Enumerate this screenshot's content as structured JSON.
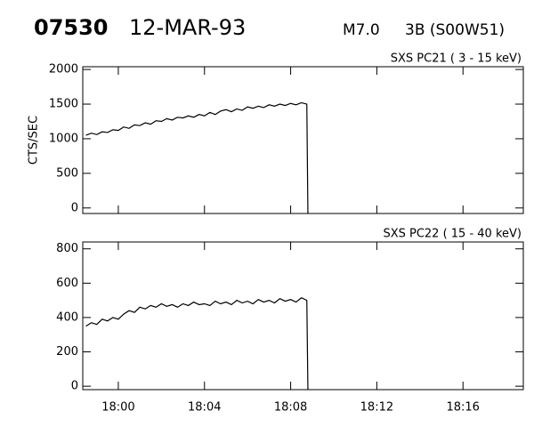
{
  "header": {
    "event": "07530",
    "date": "12-MAR-93",
    "class": "M7.0",
    "flare": "3B (S00W51)"
  },
  "chart_data": [
    {
      "type": "line",
      "title": "SXS PC21  (  3 - 15 keV)",
      "ylabel": "CTS/SEC",
      "x": [
        1078.5,
        1078.75,
        1079,
        1079.25,
        1079.5,
        1079.75,
        1080,
        1080.25,
        1080.5,
        1080.75,
        1081,
        1081.25,
        1081.5,
        1081.75,
        1082,
        1082.25,
        1082.5,
        1082.75,
        1083,
        1083.25,
        1083.5,
        1083.75,
        1084,
        1084.25,
        1084.5,
        1084.75,
        1085,
        1085.25,
        1085.5,
        1085.75,
        1086,
        1086.25,
        1086.5,
        1086.75,
        1087,
        1087.25,
        1087.5,
        1087.75,
        1088,
        1088.25,
        1088.5,
        1088.75,
        1088.8
      ],
      "series": [
        {
          "color": "#000000",
          "values": [
            1050,
            1080,
            1060,
            1100,
            1090,
            1130,
            1120,
            1170,
            1150,
            1200,
            1190,
            1230,
            1210,
            1260,
            1250,
            1290,
            1270,
            1310,
            1300,
            1330,
            1310,
            1350,
            1330,
            1380,
            1350,
            1400,
            1420,
            1390,
            1430,
            1410,
            1460,
            1440,
            1470,
            1450,
            1490,
            1470,
            1500,
            1480,
            1510,
            1490,
            1520,
            1500,
            -75
          ]
        }
      ],
      "xlim": [
        1078.35,
        1098.8
      ],
      "ylim": [
        -80,
        2040
      ],
      "xticks": [
        1080,
        1084,
        1088,
        1092,
        1096
      ],
      "yticks": [
        0,
        500,
        1000,
        1500,
        2000
      ]
    },
    {
      "type": "line",
      "title": "SXS PC22  ( 15 - 40 keV)",
      "x": [
        1078.5,
        1078.75,
        1079,
        1079.25,
        1079.5,
        1079.75,
        1080,
        1080.25,
        1080.5,
        1080.75,
        1081,
        1081.25,
        1081.5,
        1081.75,
        1082,
        1082.25,
        1082.5,
        1082.75,
        1083,
        1083.25,
        1083.5,
        1083.75,
        1084,
        1084.25,
        1084.5,
        1084.75,
        1085,
        1085.25,
        1085.5,
        1085.75,
        1086,
        1086.25,
        1086.5,
        1086.75,
        1087,
        1087.25,
        1087.5,
        1087.75,
        1088,
        1088.25,
        1088.5,
        1088.75,
        1088.8
      ],
      "series": [
        {
          "color": "#000000",
          "values": [
            350,
            370,
            360,
            390,
            380,
            400,
            390,
            420,
            440,
            430,
            460,
            450,
            470,
            460,
            480,
            465,
            475,
            460,
            480,
            470,
            490,
            475,
            480,
            470,
            495,
            480,
            490,
            475,
            500,
            485,
            495,
            480,
            505,
            490,
            500,
            485,
            510,
            495,
            505,
            490,
            515,
            500,
            -20
          ]
        }
      ],
      "xlim": [
        1078.35,
        1098.8
      ],
      "ylim": [
        -20,
        840
      ],
      "xticks": [
        {
          "value": 1080,
          "label": "18:00"
        },
        {
          "value": 1084,
          "label": "18:04"
        },
        {
          "value": 1088,
          "label": "18:08"
        },
        {
          "value": 1092,
          "label": "18:12"
        },
        {
          "value": 1096,
          "label": "18:16"
        }
      ],
      "yticks": [
        0,
        200,
        400,
        600,
        800
      ]
    }
  ]
}
